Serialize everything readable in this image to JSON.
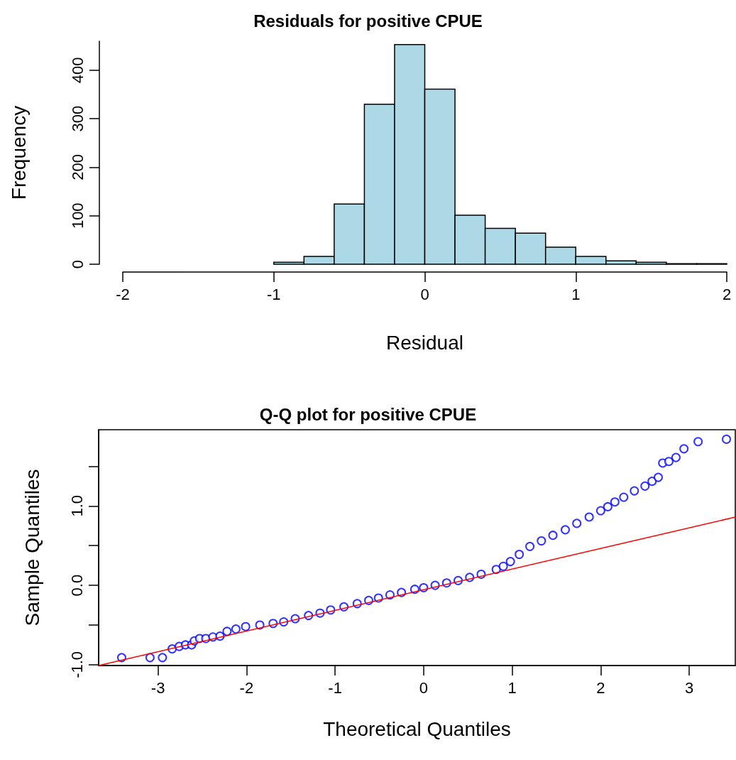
{
  "chart_data": [
    {
      "type": "histogram",
      "title": "Residuals for positive CPUE",
      "xlabel": "Residual",
      "ylabel": "Frequency",
      "bins": [
        -1,
        -0.8,
        -0.6,
        -0.4,
        -0.2,
        0,
        0.2,
        0.4,
        0.6,
        0.8,
        1,
        1.2,
        1.4,
        1.6,
        1.8,
        2
      ],
      "values": [
        4,
        16,
        124,
        330,
        453,
        361,
        101,
        74,
        64,
        35,
        16,
        7,
        4,
        1,
        1
      ],
      "color": "#add8e6",
      "xlim": [
        -2,
        2
      ],
      "xticks": [
        -2,
        -1,
        0,
        1,
        2
      ],
      "ylim": [
        0,
        460
      ],
      "yticks": [
        0,
        100,
        200,
        300,
        400
      ],
      "grid": false
    },
    {
      "type": "scatter",
      "title": "Q-Q plot for positive CPUE",
      "xlabel": "Theoretical Quantiles",
      "ylabel": "Sample Quantiles",
      "xlim": [
        -3.67,
        3.52
      ],
      "xticks": [
        -3,
        -2,
        -1,
        0,
        1,
        2,
        3
      ],
      "ylim": [
        -1.01,
        1.96
      ],
      "yticks": [
        {
          "value": -1,
          "label": "-1.0"
        },
        {
          "value": -0.5,
          "label": null
        },
        {
          "value": 0,
          "label": "0.0"
        },
        {
          "value": 0.5,
          "label": null
        },
        {
          "value": 1,
          "label": "1.0"
        },
        {
          "value": 1.5,
          "label": null
        }
      ],
      "grid": false,
      "series": [
        {
          "type": "scatter",
          "color": "#0000ff",
          "marker": "circle",
          "x": [
            -3.41,
            -3.09,
            -2.95,
            -2.84,
            -2.76,
            -2.69,
            -2.62,
            -2.59,
            -2.53,
            -2.46,
            -2.38,
            -2.3,
            -2.22,
            -2.12,
            -2.01,
            -1.85,
            -1.7,
            -1.58,
            -1.45,
            -1.3,
            -1.17,
            -1.05,
            -0.9,
            -0.75,
            -0.62,
            -0.51,
            -0.38,
            -0.25,
            -0.1,
            0.0,
            0.13,
            0.26,
            0.39,
            0.52,
            0.65,
            0.82,
            0.9,
            0.98,
            1.08,
            1.2,
            1.33,
            1.46,
            1.6,
            1.73,
            1.87,
            2.0,
            2.08,
            2.16,
            2.26,
            2.38,
            2.5,
            2.58,
            2.65,
            2.7,
            2.77,
            2.85,
            2.94,
            3.1,
            3.42
          ],
          "values": [
            -0.91,
            -0.91,
            -0.91,
            -0.8,
            -0.77,
            -0.75,
            -0.75,
            -0.7,
            -0.67,
            -0.67,
            -0.65,
            -0.64,
            -0.58,
            -0.55,
            -0.52,
            -0.5,
            -0.48,
            -0.46,
            -0.42,
            -0.38,
            -0.35,
            -0.31,
            -0.27,
            -0.23,
            -0.19,
            -0.16,
            -0.12,
            -0.09,
            -0.05,
            -0.03,
            0.0,
            0.03,
            0.06,
            0.1,
            0.14,
            0.2,
            0.24,
            0.3,
            0.39,
            0.49,
            0.56,
            0.63,
            0.7,
            0.78,
            0.86,
            0.94,
            0.99,
            1.05,
            1.11,
            1.19,
            1.25,
            1.31,
            1.36,
            1.54,
            1.56,
            1.61,
            1.72,
            1.81,
            1.84
          ]
        },
        {
          "type": "line",
          "color": "#ff0000",
          "line_style": "solid",
          "marker": "none",
          "x": [
            -3.67,
            3.52
          ],
          "values": [
            -1.01,
            0.86
          ]
        }
      ]
    }
  ]
}
